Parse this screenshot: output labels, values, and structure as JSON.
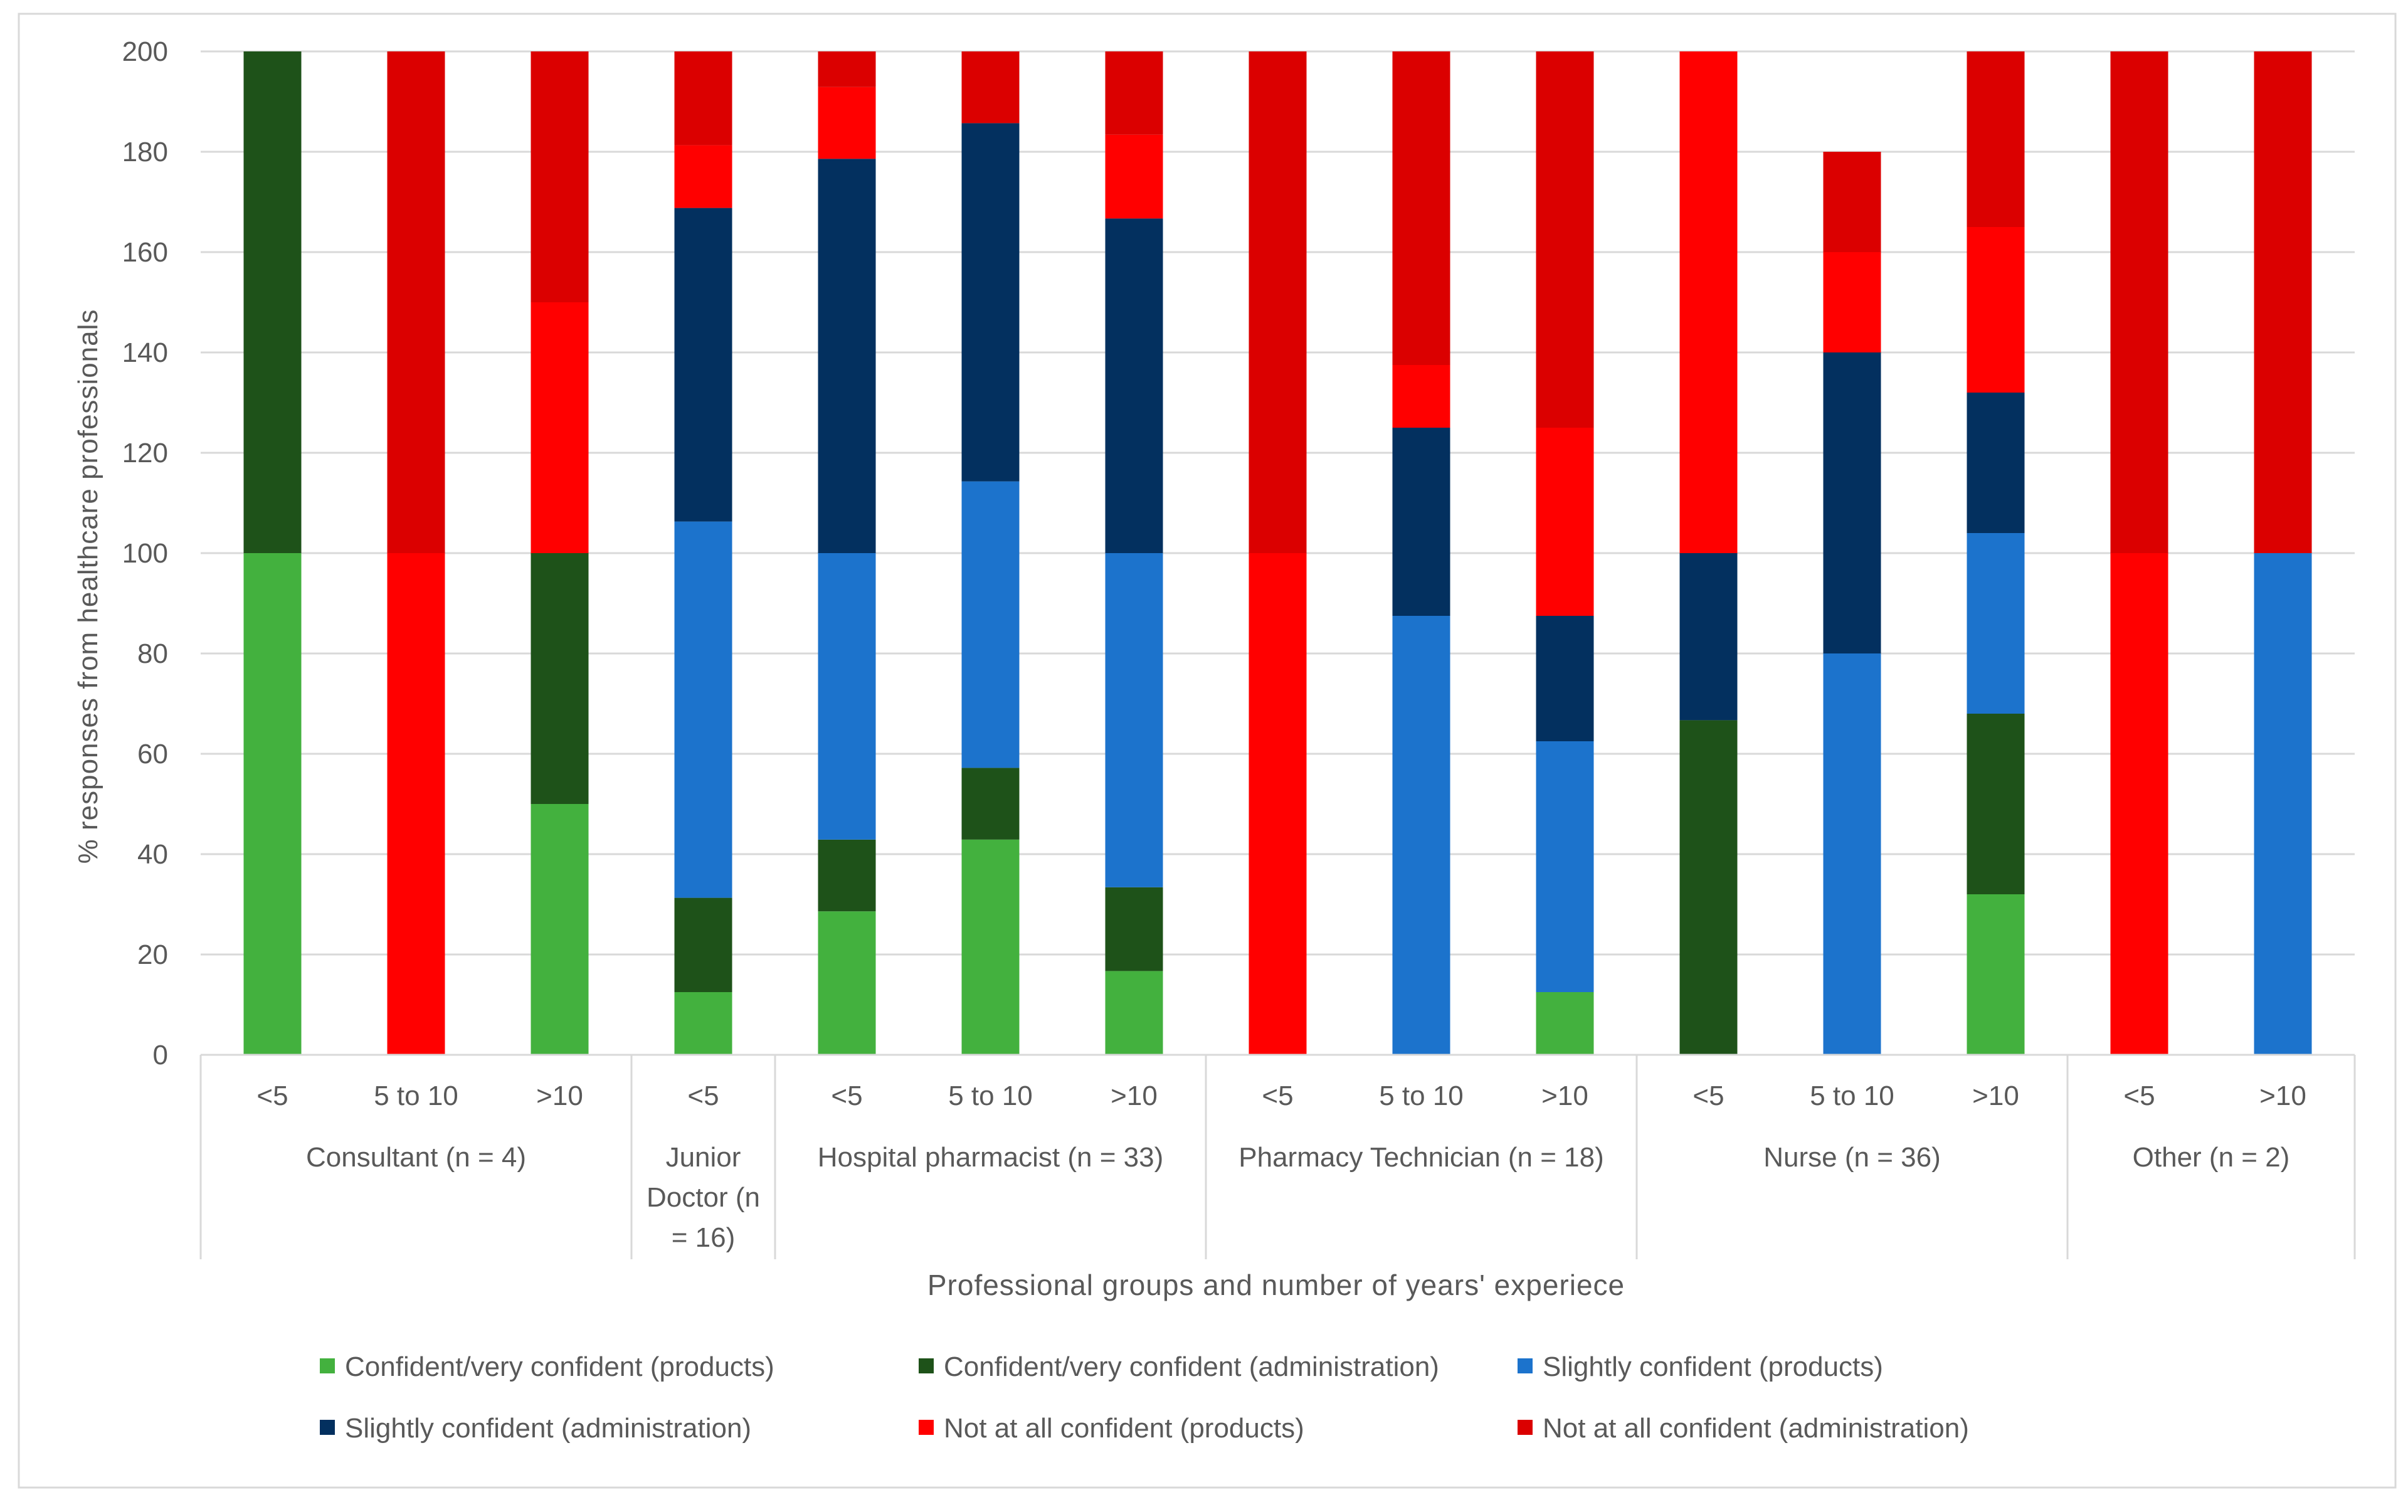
{
  "chart_data": {
    "type": "stacked-bar",
    "title": "",
    "xlabel": "Professional groups and number of years' experiece",
    "ylabel": "% responses from healthcare professionals",
    "ylim": [
      0,
      200
    ],
    "yticks": [
      0,
      20,
      40,
      60,
      80,
      100,
      120,
      140,
      160,
      180,
      200
    ],
    "groups": [
      {
        "label_lines": [
          "Consultant (n = 4)"
        ],
        "categories": [
          "<5",
          "5 to 10",
          ">10"
        ]
      },
      {
        "label_lines": [
          "Junior",
          "Doctor (n",
          "= 16)"
        ],
        "categories": [
          "<5"
        ]
      },
      {
        "label_lines": [
          "Hospital pharmacist (n = 33)"
        ],
        "categories": [
          "<5",
          "5 to 10",
          ">10"
        ]
      },
      {
        "label_lines": [
          "Pharmacy Technician (n = 18)"
        ],
        "categories": [
          "<5",
          "5 to 10",
          ">10"
        ]
      },
      {
        "label_lines": [
          "Nurse (n = 36)"
        ],
        "categories": [
          "<5",
          "5 to 10",
          ">10"
        ]
      },
      {
        "label_lines": [
          "Other (n = 2)"
        ],
        "categories": [
          "<5",
          ">10"
        ]
      }
    ],
    "series": [
      {
        "name": "Confident/very confident (products)",
        "color": "#43b13e",
        "values": [
          100,
          0,
          50,
          12.5,
          28.6,
          42.9,
          16.7,
          0,
          0,
          12.5,
          0,
          0,
          32,
          0,
          0
        ]
      },
      {
        "name": "Confident/very confident (administration)",
        "color": "#1e5219",
        "values": [
          100,
          0,
          50,
          18.8,
          14.3,
          14.3,
          16.7,
          0,
          0,
          0,
          66.7,
          0,
          36,
          0,
          0
        ]
      },
      {
        "name": "Slightly confident (products)",
        "color": "#1c73cc",
        "values": [
          0,
          0,
          0,
          75,
          57.1,
          57.1,
          66.6,
          0,
          87.5,
          50,
          0,
          80,
          36,
          0,
          100
        ]
      },
      {
        "name": "Slightly confident (administration)",
        "color": "#03305f",
        "values": [
          0,
          0,
          0,
          62.5,
          78.6,
          71.4,
          66.7,
          0,
          37.5,
          25,
          33.3,
          60,
          28,
          0,
          0
        ]
      },
      {
        "name": "Not at all confident (products)",
        "color": "#ff0000",
        "values": [
          0,
          100,
          50,
          12.5,
          14.3,
          0,
          16.7,
          100,
          12.5,
          37.5,
          100,
          20,
          33,
          100,
          0
        ]
      },
      {
        "name": "Not at all confident (administration)",
        "color": "#db0000",
        "values": [
          0,
          100,
          50,
          18.7,
          7.1,
          14.3,
          16.6,
          100,
          62.5,
          75,
          0,
          20,
          35,
          100,
          100
        ]
      }
    ]
  }
}
